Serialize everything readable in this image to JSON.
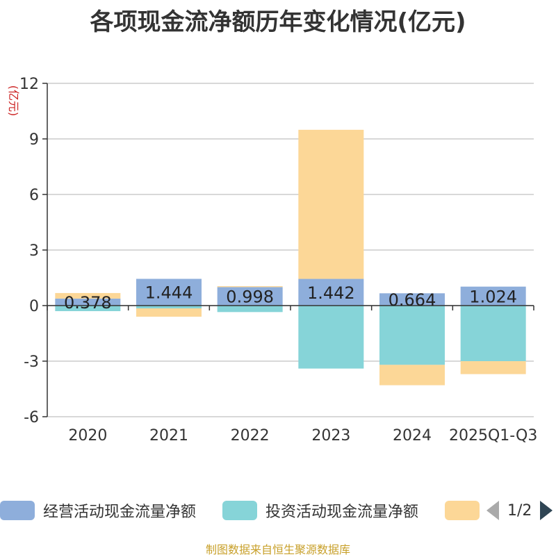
{
  "chart_data": {
    "type": "bar",
    "stacked": true,
    "title": "各项现金流净额历年变化情况(亿元)",
    "ylabel": "(亿元)",
    "ylim": [
      -6,
      12
    ],
    "yticks": [
      -6,
      -3,
      0,
      3,
      6,
      9,
      12
    ],
    "categories": [
      "2020",
      "2021",
      "2022",
      "2023",
      "2024",
      "2025Q1-Q3"
    ],
    "series": [
      {
        "name": "经营活动现金流量净额",
        "color": "#8eaedb",
        "values": [
          0.378,
          1.444,
          0.998,
          1.442,
          0.664,
          1.024
        ],
        "labels": [
          "0.378",
          "1.444",
          "0.998",
          "1.442",
          "0.664",
          "1.024"
        ]
      },
      {
        "name": "投资活动现金流量净额",
        "color": "#86d4d8",
        "values": [
          -0.3,
          -0.15,
          -0.35,
          -3.4,
          -3.2,
          -3.0
        ]
      },
      {
        "name": "",
        "color": "#fcd797",
        "values": [
          0.3,
          -0.45,
          0.05,
          8.05,
          -1.1,
          -0.7
        ]
      }
    ],
    "grid": true,
    "legend_position": "bottom"
  },
  "legend": {
    "items": [
      {
        "label": "经营活动现金流量净额",
        "color": "#8eaedb"
      },
      {
        "label": "投资活动现金流量净额",
        "color": "#86d4d8"
      },
      {
        "label": "",
        "color": "#fcd797"
      }
    ],
    "pager": "1/2"
  },
  "footer": "制图数据来自恒生聚源数据库"
}
